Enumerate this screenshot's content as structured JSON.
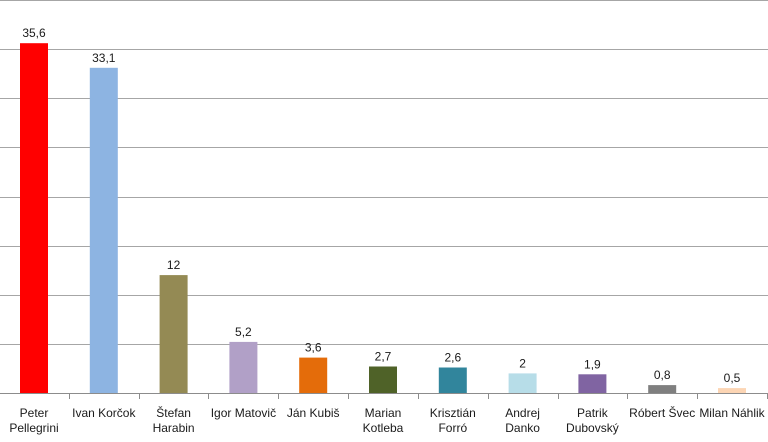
{
  "chart_data": {
    "type": "bar",
    "categories": [
      [
        "Peter",
        "Pellegrini"
      ],
      [
        "Ivan Korčok"
      ],
      [
        "Štefan",
        "Harabin"
      ],
      [
        "Igor Matovič"
      ],
      [
        "Ján Kubiš"
      ],
      [
        "Marian",
        "Kotleba"
      ],
      [
        "Krisztián",
        "Forró"
      ],
      [
        "Andrej",
        "Danko"
      ],
      [
        "Patrik",
        "Dubovský"
      ],
      [
        "Róbert Švec"
      ],
      [
        "Milan Náhlik"
      ]
    ],
    "values": [
      35.6,
      33.1,
      12,
      5.2,
      3.6,
      2.7,
      2.6,
      2,
      1.9,
      0.8,
      0.5
    ],
    "value_labels": [
      "35,6",
      "33,1",
      "12",
      "5,2",
      "3,6",
      "2,7",
      "2,6",
      "2",
      "1,9",
      "0,8",
      "0,5"
    ],
    "colors": [
      "#ff0000",
      "#8db4e2",
      "#948a54",
      "#b1a0c7",
      "#e46c0a",
      "#4f6228",
      "#31859c",
      "#b7dde8",
      "#8064a2",
      "#7f7f7f",
      "#fcd5b4"
    ],
    "ylim": [
      0,
      40
    ],
    "y_grid_step": 5,
    "grid": true,
    "legend": "none",
    "title": "",
    "xlabel": "",
    "ylabel": ""
  }
}
